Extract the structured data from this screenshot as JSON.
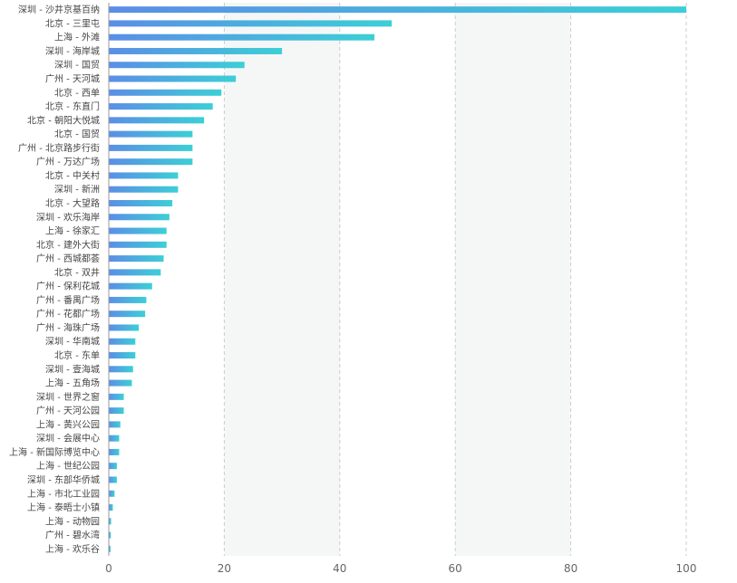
{
  "chart_data": {
    "type": "bar",
    "orientation": "horizontal",
    "categories": [
      "深圳 - 沙井京基百纳",
      "北京 - 三里屯",
      "上海 - 外滩",
      "深圳 - 海岸城",
      "深圳 - 国贸",
      "广州 - 天河城",
      "北京 - 西单",
      "北京 - 东直门",
      "北京 - 朝阳大悦城",
      "北京 - 国贸",
      "广州 - 北京路步行街",
      "广州 - 万达广场",
      "北京 - 中关村",
      "深圳 - 新洲",
      "北京 - 大望路",
      "深圳 - 欢乐海岸",
      "上海 - 徐家汇",
      "北京 - 建外大街",
      "广州 - 西城都荟",
      "北京 - 双井",
      "广州 - 保利花城",
      "广州 - 番禺广场",
      "广州 - 花都广场",
      "广州 - 海珠广场",
      "深圳 - 华南城",
      "北京 - 东单",
      "深圳 - 壹海城",
      "上海 - 五角场",
      "深圳 - 世界之窗",
      "广州 - 天河公园",
      "上海 - 黄兴公园",
      "深圳 - 会展中心",
      "上海 - 新国际博览中心",
      "上海 - 世纪公园",
      "深圳 - 东部华侨城",
      "上海 - 市北工业园",
      "上海 - 泰晤士小镇",
      "上海 - 动物园",
      "广州 - 碧水湾",
      "上海 - 欢乐谷"
    ],
    "values": [
      100,
      49,
      46,
      30,
      23.5,
      22,
      19.5,
      18,
      16.5,
      14.5,
      14.5,
      14.5,
      12,
      12,
      11,
      10.5,
      10,
      10,
      9.5,
      9,
      7.5,
      6.5,
      6.3,
      5.2,
      4.6,
      4.6,
      4.2,
      4.0,
      2.6,
      2.6,
      2.0,
      1.8,
      1.8,
      1.4,
      1.4,
      1.0,
      0.7,
      0.4,
      0.35,
      0.3
    ],
    "xticks": [
      "0",
      "20",
      "40",
      "60",
      "80",
      "100"
    ],
    "xlim": [
      0,
      100
    ],
    "grid": "vertical-dashed",
    "colors": {
      "bar_start": "#5b8ee6",
      "bar_end": "#3ccfd6",
      "band": "#f5f7f7",
      "grid": "#cccccc",
      "axis": "#999999"
    }
  }
}
